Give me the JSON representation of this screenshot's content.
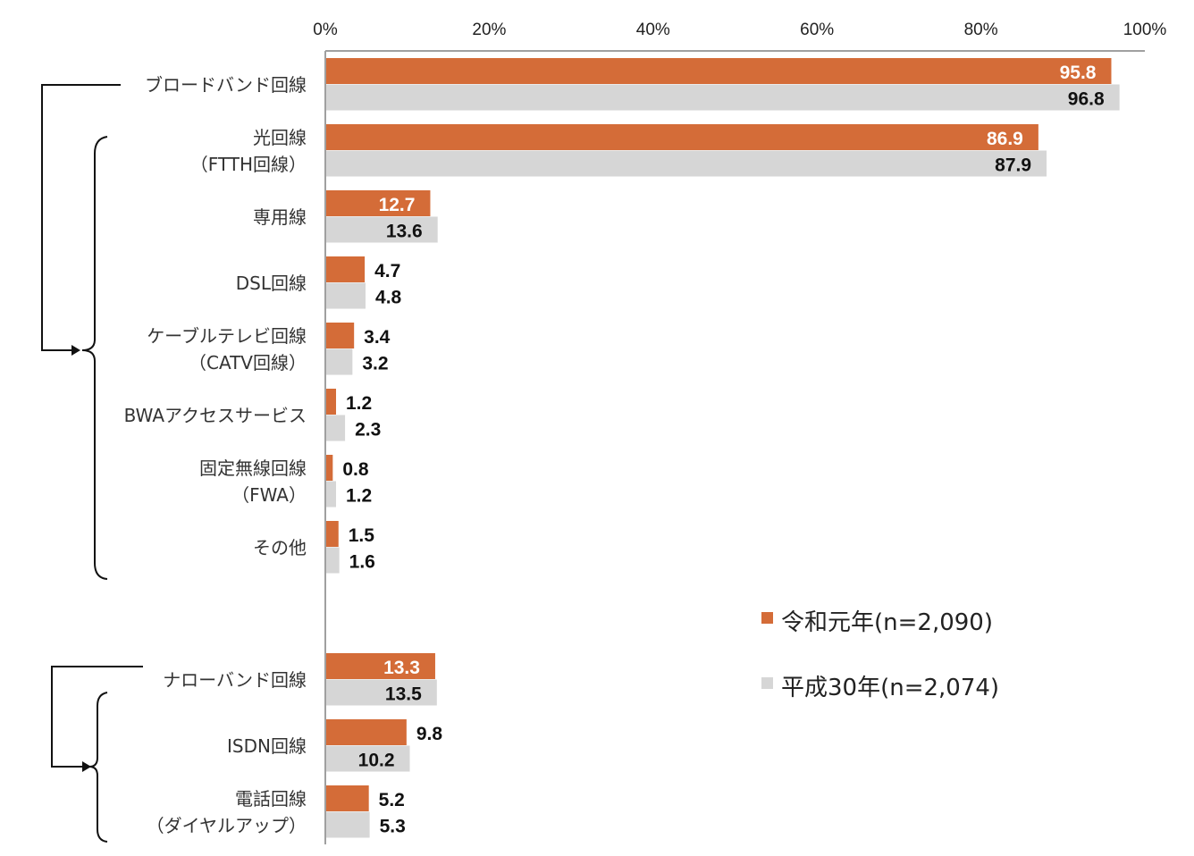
{
  "chart_data": {
    "type": "bar",
    "orientation": "horizontal",
    "xlim": [
      0,
      100
    ],
    "x_ticks": [
      "0%",
      "20%",
      "40%",
      "60%",
      "80%",
      "100%"
    ],
    "grid": false,
    "legend_placement": "lower-right",
    "categories": [
      [
        "ブロードバンド回線"
      ],
      [
        "光回線",
        "（FTTH回線）"
      ],
      [
        "専用線"
      ],
      [
        "DSL回線"
      ],
      [
        "ケーブルテレビ回線",
        "（CATV回線）"
      ],
      [
        "BWAアクセスサービス"
      ],
      [
        "固定無線回線",
        "（FWA）"
      ],
      [
        "その他"
      ],
      [
        "ナローバンド回線"
      ],
      [
        "ISDN回線"
      ],
      [
        "電話回線",
        "（ダイヤルアップ）"
      ]
    ],
    "series": [
      {
        "name": "令和元年(n=2,090)",
        "color": "#D46C38",
        "values": [
          95.8,
          86.9,
          12.7,
          4.7,
          3.4,
          1.2,
          0.8,
          1.5,
          13.3,
          9.8,
          5.2
        ]
      },
      {
        "name": "平成30年(n=2,074)",
        "color": "#D6D6D6",
        "values": [
          96.8,
          87.9,
          13.6,
          4.8,
          3.2,
          2.3,
          1.2,
          1.6,
          13.5,
          10.2,
          5.3
        ]
      }
    ]
  }
}
